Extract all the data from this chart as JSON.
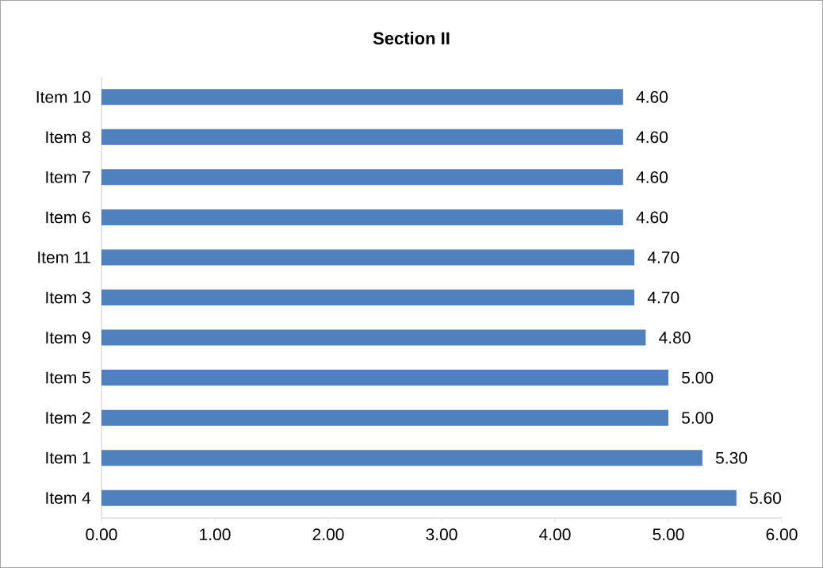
{
  "chart_data": {
    "type": "bar",
    "orientation": "horizontal",
    "title": "Section II",
    "categories": [
      "Item 10",
      "Item 8",
      "Item 7",
      "Item 6",
      "Item 11",
      "Item 3",
      "Item 9",
      "Item 5",
      "Item 2",
      "Item 1",
      "Item 4"
    ],
    "values": [
      4.6,
      4.6,
      4.6,
      4.6,
      4.7,
      4.7,
      4.8,
      5.0,
      5.0,
      5.3,
      5.6
    ],
    "value_labels": [
      "4.60",
      "4.60",
      "4.60",
      "4.60",
      "4.70",
      "4.70",
      "4.80",
      "5.00",
      "5.00",
      "5.30",
      "5.60"
    ],
    "color": "#4f81bd",
    "xlim": [
      0,
      6
    ],
    "xticks": [
      {
        "value": 0,
        "label": "0.00"
      },
      {
        "value": 1,
        "label": "1.00"
      },
      {
        "value": 2,
        "label": "2.00"
      },
      {
        "value": 3,
        "label": "3.00"
      },
      {
        "value": 4,
        "label": "4.00"
      },
      {
        "value": 5,
        "label": "5.00"
      },
      {
        "value": 6,
        "label": "6.00"
      }
    ],
    "grid": false
  }
}
